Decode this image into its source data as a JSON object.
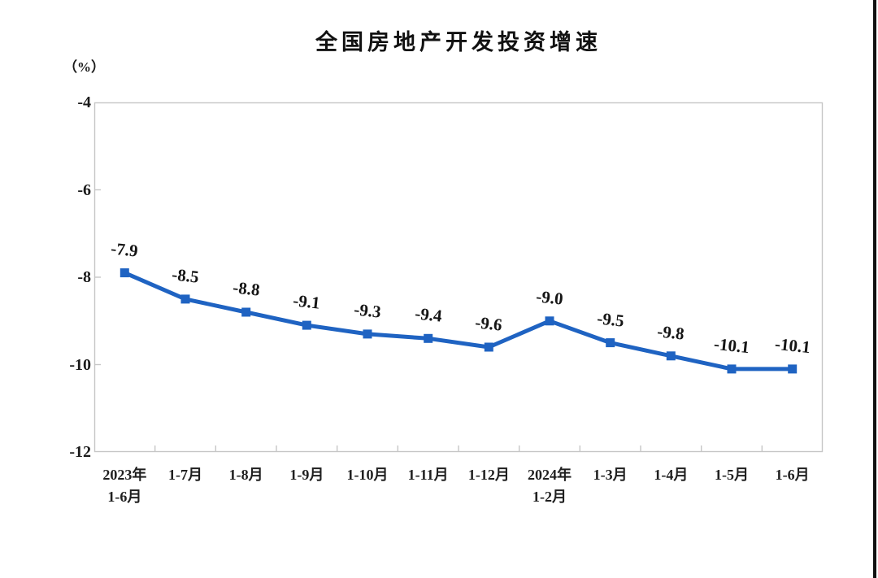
{
  "page": {
    "background": "#FFFFFF",
    "right_edge_color": "#111111"
  },
  "chart_data": {
    "type": "line",
    "title": "全国房地产开发投资增速",
    "ylabel": "（%）",
    "xlabel": "",
    "categories": [
      "2023年\n1-6月",
      "1-7月",
      "1-8月",
      "1-9月",
      "1-10月",
      "1-11月",
      "1-12月",
      "2024年\n1-2月",
      "1-3月",
      "1-4月",
      "1-5月",
      "1-6月"
    ],
    "values": [
      -7.9,
      -8.5,
      -8.8,
      -9.1,
      -9.3,
      -9.4,
      -9.6,
      -9.0,
      -9.5,
      -9.8,
      -10.1,
      -10.1
    ],
    "data_labels": [
      "-7.9",
      "-8.5",
      "-8.8",
      "-9.1",
      "-9.3",
      "-9.4",
      "-9.6",
      "-9.0",
      "-9.5",
      "-9.8",
      "-10.1",
      "-10.1"
    ],
    "yticks": [
      "-4",
      "-6",
      "-8",
      "-10",
      "-12"
    ],
    "ylim": [
      -12,
      -4
    ],
    "grid": false,
    "legend": "none",
    "marker": "square",
    "line_color": "#1F63C2",
    "axis_color": "#C6C6C6",
    "text_color": "#1B1B1B"
  }
}
